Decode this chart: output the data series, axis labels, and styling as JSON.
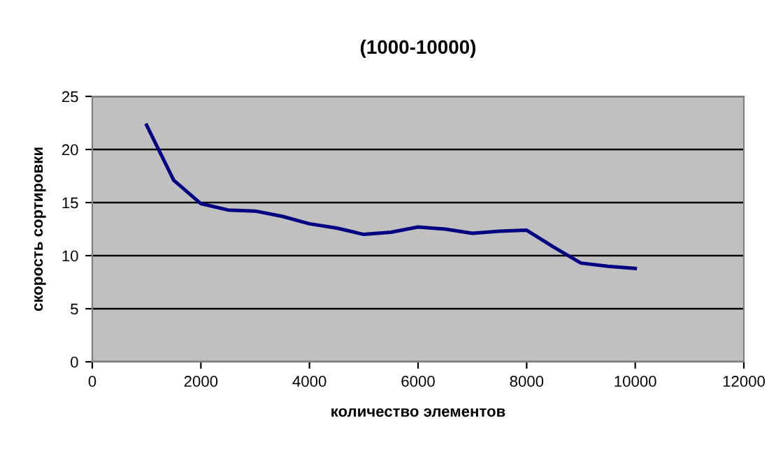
{
  "chart_data": {
    "type": "line",
    "title": "(1000-10000)",
    "xlabel": "количество элементов",
    "ylabel": "скорость сортировки",
    "x": [
      1000,
      1500,
      2000,
      2500,
      3000,
      3500,
      4000,
      4500,
      5000,
      5500,
      6000,
      6500,
      7000,
      7500,
      8000,
      8500,
      9000,
      9500,
      10000
    ],
    "series": [
      {
        "color": "#000080",
        "values": [
          22.3,
          17.1,
          14.9,
          14.3,
          14.2,
          13.7,
          13.0,
          12.6,
          12.0,
          12.2,
          12.7,
          12.5,
          12.1,
          12.3,
          12.4,
          10.8,
          9.3,
          9.0,
          8.8
        ]
      }
    ],
    "xlim": [
      0,
      12000
    ],
    "xticks": [
      0,
      2000,
      4000,
      6000,
      8000,
      10000,
      12000
    ],
    "ylim": [
      0,
      25
    ],
    "yticks": [
      0,
      5,
      10,
      15,
      20,
      25
    ],
    "grid": "y",
    "legend": false,
    "marker": "none",
    "line_style": "solid"
  }
}
